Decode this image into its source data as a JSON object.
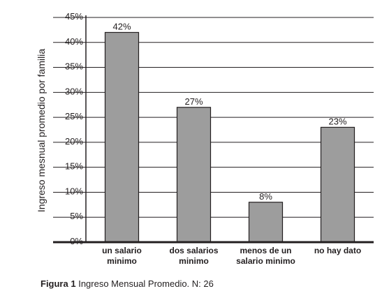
{
  "chart_data": {
    "type": "bar",
    "categories": [
      [
        "un salario",
        "minimo"
      ],
      [
        "dos salarios",
        "minimo"
      ],
      [
        "menos de un",
        "salario minimo"
      ],
      [
        "no hay dato"
      ]
    ],
    "values": [
      42,
      27,
      8,
      23
    ],
    "data_labels": [
      "42%",
      "27%",
      "8%",
      "23%"
    ],
    "ylabel": "Ingreso mesnual promedio por familia",
    "ylim": [
      0,
      45
    ],
    "yticks": [
      "0%",
      "5%",
      "10%",
      "15%",
      "20%",
      "25%",
      "30%",
      "35%",
      "40%",
      "45%"
    ],
    "grid": true,
    "bar_color": "#9d9d9d"
  },
  "caption": {
    "label": "Figura 1",
    "text": "Ingreso Mensual Promedio. N: 26"
  }
}
